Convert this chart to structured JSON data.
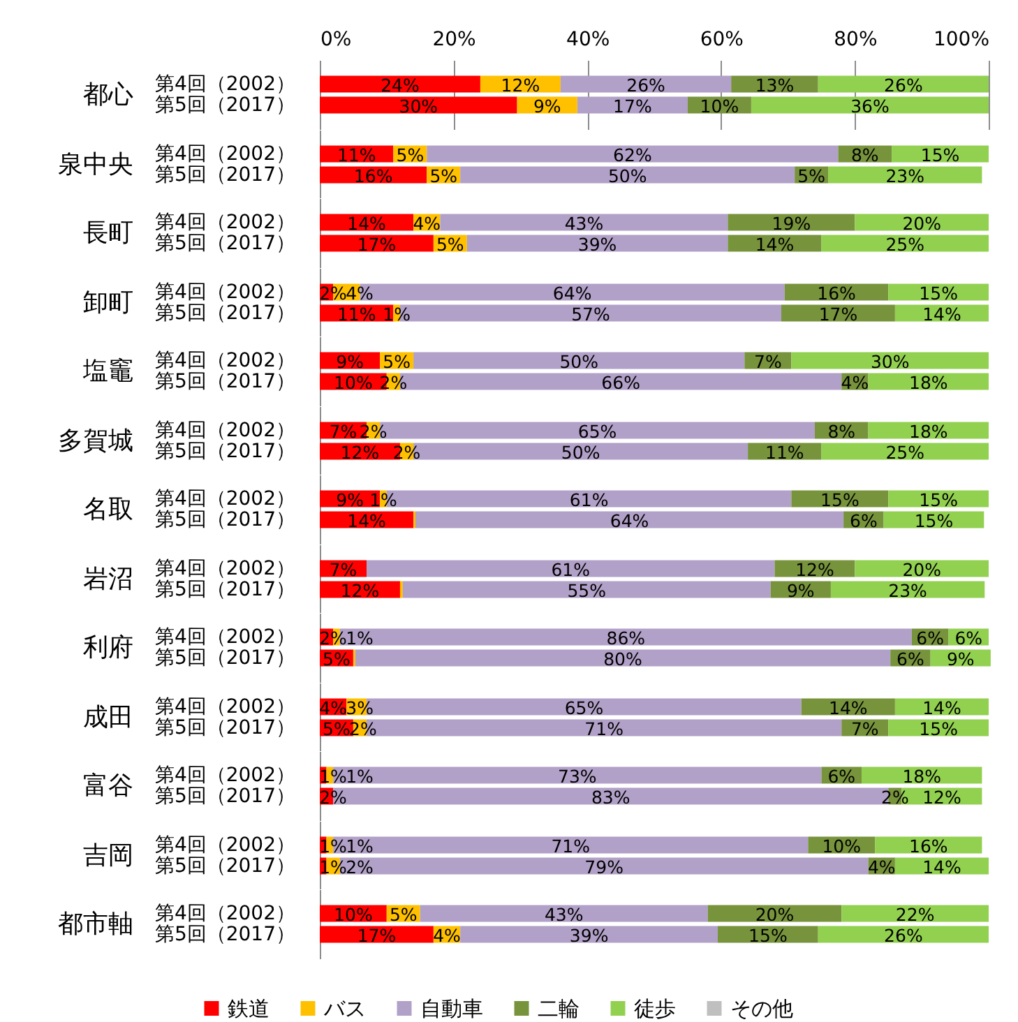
{
  "chart_data": [
    {
      "type": "bar",
      "orientation": "horizontal",
      "stacked": true,
      "ylabel": "都心",
      "categories": [
        "第4回（2002）",
        "第5回（2017）"
      ],
      "xlim": [
        0,
        100
      ],
      "xticks": [
        {
          "value": 0,
          "label": "0%"
        },
        {
          "value": 20,
          "label": "20%"
        },
        {
          "value": 40,
          "label": "40%"
        },
        {
          "value": 60,
          "label": "60%"
        },
        {
          "value": 80,
          "label": "80%"
        },
        {
          "value": 100,
          "label": "100%"
        }
      ],
      "grid": "x",
      "legend": false,
      "series": [
        {
          "color": "#ff0000",
          "values": [
            24,
            29.5
          ],
          "value_labels": [
            "24%",
            "30%"
          ]
        },
        {
          "color": "#ffc000",
          "values": [
            12,
            9
          ],
          "value_labels": [
            "12%",
            "9%"
          ]
        },
        {
          "color": "#b1a0c7",
          "values": [
            25.5,
            16.5
          ],
          "value_labels": [
            "26%",
            "17%"
          ]
        },
        {
          "color": "#77933c",
          "values": [
            13,
            9.5
          ],
          "value_labels": [
            "13%",
            "10%"
          ]
        },
        {
          "color": "#92d050",
          "values": [
            25.5,
            35.5
          ],
          "value_labels": [
            "26%",
            "36%"
          ]
        },
        {
          "color": "#bfbfbf",
          "values": [
            null,
            null
          ]
        }
      ]
    },
    {
      "type": "bar",
      "orientation": "horizontal",
      "stacked": true,
      "ylabel": "泉中央",
      "categories": [
        "第4回（2002）",
        "第5回（2017）"
      ],
      "xlim": [
        0,
        100
      ],
      "grid": "x",
      "legend": false,
      "tick_labels": "y",
      "series": [
        {
          "color": "#ff0000",
          "values": [
            11,
            16
          ],
          "value_labels": [
            "11%",
            "16%"
          ]
        },
        {
          "color": "#ffc000",
          "values": [
            5,
            5
          ],
          "value_labels": [
            "5%",
            "5%"
          ]
        },
        {
          "color": "#b1a0c7",
          "values": [
            61.5,
            50
          ],
          "value_labels": [
            "62%",
            "50%"
          ]
        },
        {
          "color": "#77933c",
          "values": [
            8,
            5
          ],
          "value_labels": [
            "8%",
            "5%"
          ]
        },
        {
          "color": "#92d050",
          "values": [
            14.5,
            23
          ],
          "value_labels": [
            "15%",
            "23%"
          ]
        },
        {
          "color": "#bfbfbf",
          "values": [
            null,
            null
          ]
        }
      ]
    },
    {
      "type": "bar",
      "orientation": "horizontal",
      "stacked": true,
      "ylabel": "長町",
      "categories": [
        "第4回（2002）",
        "第5回（2017）"
      ],
      "xlim": [
        0,
        100
      ],
      "grid": "x",
      "legend": false,
      "tick_labels": "y",
      "series": [
        {
          "color": "#ff0000",
          "values": [
            14,
            17
          ],
          "value_labels": [
            "14%",
            "17%"
          ]
        },
        {
          "color": "#ffc000",
          "values": [
            4,
            5
          ],
          "value_labels": [
            "4%",
            "5%"
          ]
        },
        {
          "color": "#b1a0c7",
          "values": [
            43,
            39
          ],
          "value_labels": [
            "43%",
            "39%"
          ]
        },
        {
          "color": "#77933c",
          "values": [
            19,
            14
          ],
          "value_labels": [
            "19%",
            "14%"
          ]
        },
        {
          "color": "#92d050",
          "values": [
            20,
            25
          ],
          "value_labels": [
            "20%",
            "25%"
          ]
        },
        {
          "color": "#bfbfbf",
          "values": [
            null,
            null
          ]
        }
      ]
    },
    {
      "type": "bar",
      "orientation": "horizontal",
      "stacked": true,
      "ylabel": "卸町",
      "categories": [
        "第4回（2002）",
        "第5回（2017）"
      ],
      "xlim": [
        0,
        100
      ],
      "grid": "x",
      "legend": false,
      "tick_labels": "y",
      "series": [
        {
          "color": "#ff0000",
          "values": [
            2,
            11
          ],
          "value_labels": [
            "2%",
            "11%"
          ]
        },
        {
          "color": "#ffc000",
          "values": [
            4,
            1
          ],
          "value_labels": [
            "4%",
            "1%"
          ]
        },
        {
          "color": "#b1a0c7",
          "values": [
            63.5,
            57
          ],
          "value_labels": [
            "64%",
            "57%"
          ]
        },
        {
          "color": "#77933c",
          "values": [
            15.5,
            17
          ],
          "value_labels": [
            "16%",
            "17%"
          ]
        },
        {
          "color": "#92d050",
          "values": [
            15,
            14
          ],
          "value_labels": [
            "15%",
            "14%"
          ]
        },
        {
          "color": "#bfbfbf",
          "values": [
            null,
            null
          ]
        }
      ]
    },
    {
      "type": "bar",
      "orientation": "horizontal",
      "stacked": true,
      "ylabel": "塩竈",
      "categories": [
        "第4回（2002）",
        "第5回（2017）"
      ],
      "xlim": [
        0,
        100
      ],
      "grid": "x",
      "legend": false,
      "tick_labels": "y",
      "series": [
        {
          "color": "#ff0000",
          "values": [
            9,
            10
          ],
          "value_labels": [
            "9%",
            "10%"
          ]
        },
        {
          "color": "#ffc000",
          "values": [
            5,
            2
          ],
          "value_labels": [
            "5%",
            "2%"
          ]
        },
        {
          "color": "#b1a0c7",
          "values": [
            49.5,
            66
          ],
          "value_labels": [
            "50%",
            "66%"
          ]
        },
        {
          "color": "#77933c",
          "values": [
            7,
            4
          ],
          "value_labels": [
            "7%",
            "4%"
          ]
        },
        {
          "color": "#92d050",
          "values": [
            29.5,
            18
          ],
          "value_labels": [
            "30%",
            "18%"
          ]
        },
        {
          "color": "#bfbfbf",
          "values": [
            null,
            null
          ]
        }
      ]
    },
    {
      "type": "bar",
      "orientation": "horizontal",
      "stacked": true,
      "ylabel": "多賀城",
      "categories": [
        "第4回（2002）",
        "第5回（2017）"
      ],
      "xlim": [
        0,
        100
      ],
      "grid": "x",
      "legend": false,
      "tick_labels": "y",
      "series": [
        {
          "color": "#ff0000",
          "values": [
            7,
            12
          ],
          "value_labels": [
            "7%",
            "12%"
          ]
        },
        {
          "color": "#ffc000",
          "values": [
            2,
            2
          ],
          "value_labels": [
            "2%",
            "2%"
          ]
        },
        {
          "color": "#b1a0c7",
          "values": [
            65,
            50
          ],
          "value_labels": [
            "65%",
            "50%"
          ]
        },
        {
          "color": "#77933c",
          "values": [
            8,
            11
          ],
          "value_labels": [
            "8%",
            "11%"
          ]
        },
        {
          "color": "#92d050",
          "values": [
            18,
            25
          ],
          "value_labels": [
            "18%",
            "25%"
          ]
        },
        {
          "color": "#bfbfbf",
          "values": [
            null,
            null
          ]
        }
      ]
    },
    {
      "type": "bar",
      "orientation": "horizontal",
      "stacked": true,
      "ylabel": "名取",
      "categories": [
        "第4回（2002）",
        "第5回（2017）"
      ],
      "xlim": [
        0,
        100
      ],
      "grid": "x",
      "legend": false,
      "tick_labels": "y",
      "series": [
        {
          "color": "#ff0000",
          "values": [
            9,
            14
          ],
          "value_labels": [
            "9%",
            "14%"
          ]
        },
        {
          "color": "#ffc000",
          "values": [
            1,
            0.3
          ],
          "value_labels": [
            "1%",
            null
          ]
        },
        {
          "color": "#b1a0c7",
          "values": [
            60.5,
            64
          ],
          "value_labels": [
            "61%",
            "64%"
          ]
        },
        {
          "color": "#77933c",
          "values": [
            14.5,
            6
          ],
          "value_labels": [
            "15%",
            "6%"
          ]
        },
        {
          "color": "#92d050",
          "values": [
            15,
            15
          ],
          "value_labels": [
            "15%",
            "15%"
          ]
        },
        {
          "color": "#bfbfbf",
          "values": [
            null,
            null
          ]
        }
      ]
    },
    {
      "type": "bar",
      "orientation": "horizontal",
      "stacked": true,
      "ylabel": "岩沼",
      "categories": [
        "第4回（2002）",
        "第5回（2017）"
      ],
      "xlim": [
        0,
        100
      ],
      "grid": "x",
      "legend": false,
      "tick_labels": "y",
      "series": [
        {
          "color": "#ff0000",
          "values": [
            7,
            12
          ],
          "value_labels": [
            "7%",
            "12%"
          ]
        },
        {
          "color": "#ffc000",
          "values": [
            null,
            0.4
          ],
          "value_labels": [
            null,
            null
          ]
        },
        {
          "color": "#b1a0c7",
          "values": [
            61,
            55
          ],
          "value_labels": [
            "61%",
            "55%"
          ]
        },
        {
          "color": "#77933c",
          "values": [
            12,
            9
          ],
          "value_labels": [
            "12%",
            "9%"
          ]
        },
        {
          "color": "#92d050",
          "values": [
            20,
            23
          ],
          "value_labels": [
            "20%",
            "23%"
          ]
        },
        {
          "color": "#bfbfbf",
          "values": [
            null,
            null
          ]
        }
      ]
    },
    {
      "type": "bar",
      "orientation": "horizontal",
      "stacked": true,
      "ylabel": "利府",
      "categories": [
        "第4回（2002）",
        "第5回（2017）"
      ],
      "xlim": [
        0,
        100
      ],
      "grid": "x",
      "legend": false,
      "tick_labels": "y",
      "series": [
        {
          "color": "#ff0000",
          "values": [
            2,
            5
          ],
          "value_labels": [
            "2%",
            "5%"
          ]
        },
        {
          "color": "#ffc000",
          "values": [
            1,
            0.3
          ],
          "value_labels": [
            "1%",
            null
          ]
        },
        {
          "color": "#b1a0c7",
          "values": [
            85.5,
            80
          ],
          "value_labels": [
            "86%",
            "80%"
          ]
        },
        {
          "color": "#77933c",
          "values": [
            5.5,
            6
          ],
          "value_labels": [
            "6%",
            "6%"
          ]
        },
        {
          "color": "#92d050",
          "values": [
            6,
            9
          ],
          "value_labels": [
            "6%",
            "9%"
          ]
        },
        {
          "color": "#bfbfbf",
          "values": [
            null,
            null
          ]
        }
      ]
    },
    {
      "type": "bar",
      "orientation": "horizontal",
      "stacked": true,
      "ylabel": "成田",
      "categories": [
        "第4回（2002）",
        "第5回（2017）"
      ],
      "xlim": [
        0,
        100
      ],
      "grid": "x",
      "legend": false,
      "tick_labels": "y",
      "series": [
        {
          "color": "#ff0000",
          "values": [
            4,
            5
          ],
          "value_labels": [
            "4%",
            "5%"
          ]
        },
        {
          "color": "#ffc000",
          "values": [
            3,
            2
          ],
          "value_labels": [
            "3%",
            "2%"
          ]
        },
        {
          "color": "#b1a0c7",
          "values": [
            65,
            71
          ],
          "value_labels": [
            "65%",
            "71%"
          ]
        },
        {
          "color": "#77933c",
          "values": [
            14,
            7
          ],
          "value_labels": [
            "14%",
            "7%"
          ]
        },
        {
          "color": "#92d050",
          "values": [
            14,
            15
          ],
          "value_labels": [
            "14%",
            "15%"
          ]
        },
        {
          "color": "#bfbfbf",
          "values": [
            null,
            null
          ]
        }
      ]
    },
    {
      "type": "bar",
      "orientation": "horizontal",
      "stacked": true,
      "ylabel": "富谷",
      "categories": [
        "第4回（2002）",
        "第5回（2017）"
      ],
      "xlim": [
        0,
        100
      ],
      "grid": "x",
      "legend": false,
      "tick_labels": "y",
      "series": [
        {
          "color": "#ff0000",
          "values": [
            1,
            2
          ],
          "value_labels": [
            "1%",
            "2%"
          ]
        },
        {
          "color": "#ffc000",
          "values": [
            1,
            null
          ],
          "value_labels": [
            "1%",
            null
          ]
        },
        {
          "color": "#b1a0c7",
          "values": [
            73,
            83
          ],
          "value_labels": [
            "73%",
            "83%"
          ]
        },
        {
          "color": "#77933c",
          "values": [
            6,
            2
          ],
          "value_labels": [
            "6%",
            "2%"
          ]
        },
        {
          "color": "#92d050",
          "values": [
            18,
            12
          ],
          "value_labels": [
            "18%",
            "12%"
          ]
        },
        {
          "color": "#bfbfbf",
          "values": [
            null,
            null
          ]
        }
      ]
    },
    {
      "type": "bar",
      "orientation": "horizontal",
      "stacked": true,
      "ylabel": "吉岡",
      "categories": [
        "第4回（2002）",
        "第5回（2017）"
      ],
      "xlim": [
        0,
        100
      ],
      "grid": "x",
      "legend": false,
      "tick_labels": "y",
      "series": [
        {
          "color": "#ff0000",
          "values": [
            1,
            1
          ],
          "value_labels": [
            "1%",
            "1%"
          ]
        },
        {
          "color": "#ffc000",
          "values": [
            1,
            2
          ],
          "value_labels": [
            "1%",
            "2%"
          ]
        },
        {
          "color": "#b1a0c7",
          "values": [
            71,
            79
          ],
          "value_labels": [
            "71%",
            "79%"
          ]
        },
        {
          "color": "#77933c",
          "values": [
            10,
            4
          ],
          "value_labels": [
            "10%",
            "4%"
          ]
        },
        {
          "color": "#92d050",
          "values": [
            16,
            14
          ],
          "value_labels": [
            "16%",
            "14%"
          ]
        },
        {
          "color": "#bfbfbf",
          "values": [
            null,
            null
          ]
        }
      ]
    },
    {
      "type": "bar",
      "orientation": "horizontal",
      "stacked": true,
      "ylabel": "都市軸",
      "categories": [
        "第4回（2002）",
        "第5回（2017）"
      ],
      "xlim": [
        0,
        100
      ],
      "grid": "x",
      "legend": "bottom",
      "tick_labels": "y",
      "series": [
        {
          "name": "鉄道",
          "color": "#ff0000",
          "values": [
            10,
            17
          ],
          "value_labels": [
            "10%",
            "17%"
          ]
        },
        {
          "name": "バス",
          "color": "#ffc000",
          "values": [
            5,
            4
          ],
          "value_labels": [
            "5%",
            "4%"
          ]
        },
        {
          "name": "自動車",
          "color": "#b1a0c7",
          "values": [
            43,
            38.5
          ],
          "value_labels": [
            "43%",
            "39%"
          ]
        },
        {
          "name": "二輪",
          "color": "#77933c",
          "values": [
            20,
            15
          ],
          "value_labels": [
            "20%",
            "15%"
          ]
        },
        {
          "name": "徒歩",
          "color": "#92d050",
          "values": [
            22,
            25.5
          ],
          "value_labels": [
            "22%",
            "26%"
          ]
        },
        {
          "name": "その他",
          "color": "#bfbfbf",
          "values": [
            null,
            null
          ]
        }
      ]
    }
  ]
}
